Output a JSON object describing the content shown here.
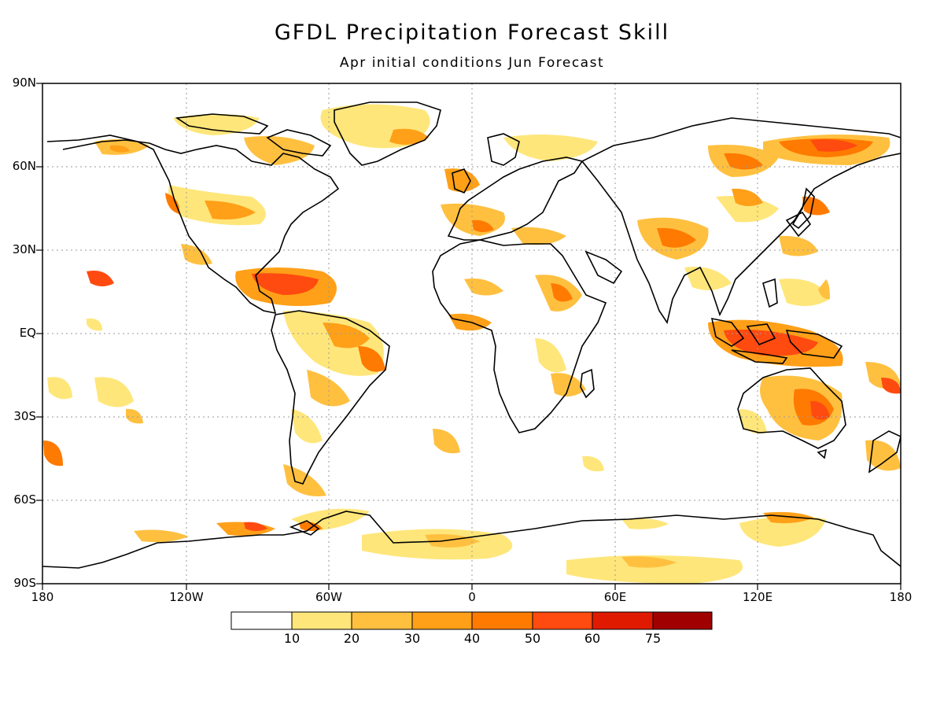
{
  "title": "GFDL Precipitation Forecast Skill",
  "subtitle": "Apr initial conditions  Jun Forecast",
  "lat_labels": [
    "90N",
    "60N",
    "30N",
    "EQ",
    "30S",
    "60S",
    "90S"
  ],
  "lon_labels": [
    "180",
    "120W",
    "60W",
    "0",
    "60E",
    "120E",
    "180"
  ],
  "colorbar": {
    "levels": [
      "10",
      "20",
      "30",
      "40",
      "50",
      "60",
      "75"
    ],
    "colors": [
      "#ffffff",
      "#ffe67a",
      "#ffc040",
      "#ffa018",
      "#ff7a00",
      "#ff4a10",
      "#e01a00",
      "#a00000"
    ]
  },
  "colors": {
    "frame": "#000000",
    "coast": "#000000",
    "grid": "#9a9a9a"
  }
}
